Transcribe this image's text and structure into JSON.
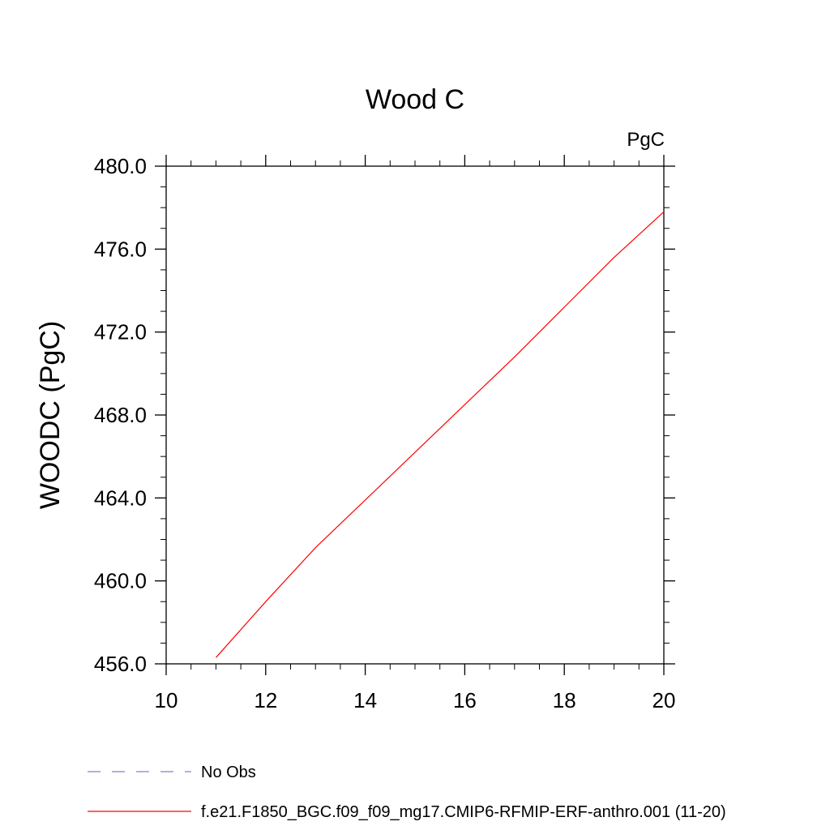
{
  "chart_data": {
    "type": "line",
    "title": "Wood C",
    "units_label": "PgC",
    "xlabel": "",
    "ylabel": "WOODC  (PgC)",
    "xlim": [
      10,
      20
    ],
    "ylim": [
      456.0,
      480.0
    ],
    "x_ticks": [
      10,
      12,
      14,
      16,
      18,
      20
    ],
    "x_tick_labels": [
      "10",
      "12",
      "14",
      "16",
      "18",
      "20"
    ],
    "y_ticks": [
      456.0,
      460.0,
      464.0,
      468.0,
      472.0,
      476.0,
      480.0
    ],
    "y_tick_labels": [
      "456.0",
      "460.0",
      "464.0",
      "468.0",
      "472.0",
      "476.0",
      "480.0"
    ],
    "grid": false,
    "legend_position": "bottom-left",
    "legend": [
      {
        "label": "No Obs",
        "color": "#8a7fc0",
        "dash": "dashed"
      },
      {
        "label": "f.e21.F1850_BGC.f09_f09_mg17.CMIP6-RFMIP-ERF-anthro.001 (11-20)",
        "color": "#ff0000",
        "dash": "solid"
      }
    ],
    "series": [
      {
        "name": "f.e21.F1850_BGC.f09_f09_mg17.CMIP6-RFMIP-ERF-anthro.001 (11-20)",
        "color": "#ff0000",
        "x": [
          11,
          12,
          13,
          14,
          15,
          16,
          17,
          18,
          19,
          20
        ],
        "y": [
          456.3,
          459.0,
          461.6,
          463.9,
          466.2,
          468.5,
          470.8,
          473.2,
          475.6,
          477.8
        ]
      }
    ]
  }
}
